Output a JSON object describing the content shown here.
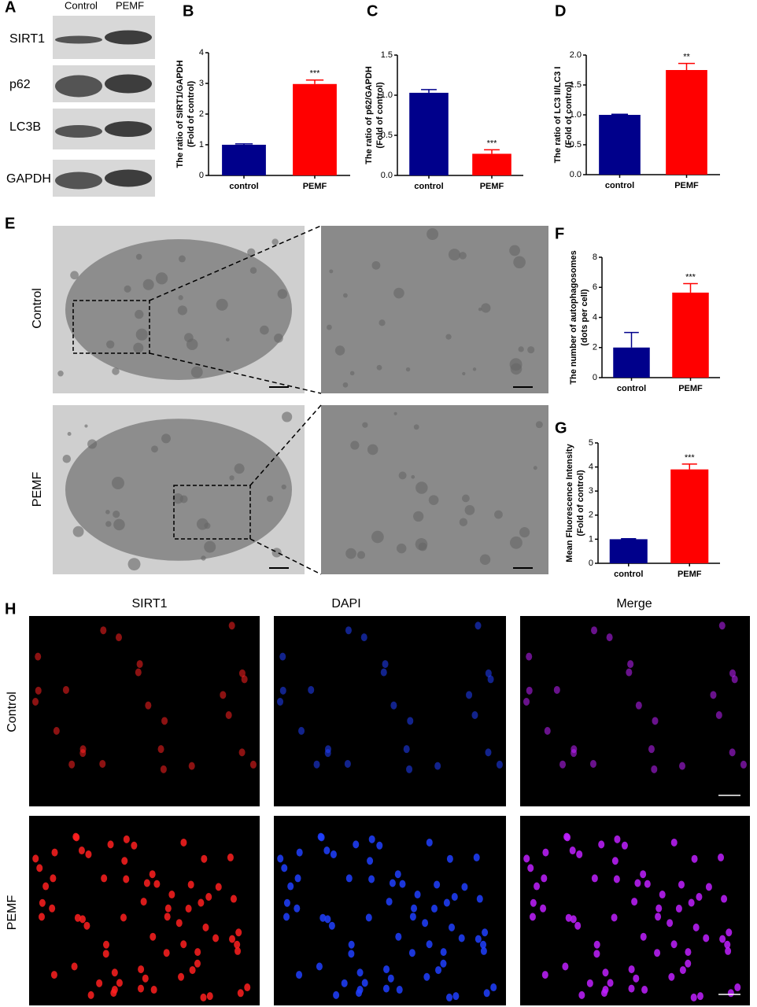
{
  "figure": {
    "panel_letters": {
      "a": "A",
      "e": "E",
      "h": "H"
    },
    "blot": {
      "columns": [
        "Control",
        "PEMF"
      ],
      "rows": [
        "SIRT1",
        "p62",
        "LC3B",
        "GAPDH"
      ]
    },
    "tem": {
      "rows": [
        "Control",
        "PEMF"
      ]
    },
    "fluorescence": {
      "columns": [
        "SIRT1",
        "DAPI",
        "Merge"
      ],
      "rows": [
        "Control",
        "PEMF"
      ]
    }
  },
  "chart_data": [
    {
      "type": "bar",
      "panel": "B",
      "ylabel": [
        "The ratio of SIRT1/GAPDH",
        "(Fold of control)"
      ],
      "categories": [
        "control",
        "PEMF"
      ],
      "values": [
        1.0,
        2.98
      ],
      "errors": [
        0.03,
        0.13
      ],
      "colors": [
        "#00008b",
        "#ff0000"
      ],
      "annotations": [
        {
          "x": "PEMF",
          "text": "***"
        }
      ],
      "ylim": [
        0,
        4
      ],
      "yticks": [
        0,
        1,
        2,
        3,
        4
      ]
    },
    {
      "type": "bar",
      "panel": "C",
      "ylabel": [
        "The ratio of p62/GAPDH",
        "(Fold of control)"
      ],
      "categories": [
        "control",
        "PEMF"
      ],
      "values": [
        1.03,
        0.27
      ],
      "errors": [
        0.04,
        0.05
      ],
      "colors": [
        "#00008b",
        "#ff0000"
      ],
      "annotations": [
        {
          "x": "PEMF",
          "text": "***"
        }
      ],
      "ylim": [
        0,
        1.5
      ],
      "yticks": [
        {
          "value": 0,
          "label": "0.0"
        },
        0.5,
        {
          "value": 1,
          "label": "1.0"
        },
        1.5
      ]
    },
    {
      "type": "bar",
      "panel": "D",
      "ylabel": [
        "The ratio of LC3 II/LC3 I",
        "(Fold of control)"
      ],
      "categories": [
        "control",
        "PEMF"
      ],
      "values": [
        1.0,
        1.75
      ],
      "errors": [
        0.01,
        0.11
      ],
      "colors": [
        "#00008b",
        "#ff0000"
      ],
      "annotations": [
        {
          "x": "PEMF",
          "text": "**"
        }
      ],
      "ylim": [
        0,
        2
      ],
      "yticks": [
        {
          "value": 0,
          "label": "0.0"
        },
        0.5,
        {
          "value": 1,
          "label": "1.0"
        },
        1.5,
        {
          "value": 2,
          "label": "2.0"
        }
      ]
    },
    {
      "type": "bar",
      "panel": "F",
      "ylabel": [
        "The number of autophagosomes",
        "(dots per cell)"
      ],
      "categories": [
        "control",
        "PEMF"
      ],
      "values": [
        2.0,
        5.65
      ],
      "errors": [
        1.0,
        0.6
      ],
      "colors": [
        "#00008b",
        "#ff0000"
      ],
      "annotations": [
        {
          "x": "PEMF",
          "text": "***"
        }
      ],
      "ylim": [
        0,
        8
      ],
      "yticks": [
        0,
        2,
        4,
        6,
        8
      ]
    },
    {
      "type": "bar",
      "panel": "G",
      "ylabel": [
        "Mean Fluorescence Intensity",
        "(Fold of control)"
      ],
      "categories": [
        "control",
        "PEMF"
      ],
      "values": [
        1.0,
        3.9
      ],
      "errors": [
        0.02,
        0.22
      ],
      "colors": [
        "#00008b",
        "#ff0000"
      ],
      "annotations": [
        {
          "x": "PEMF",
          "text": "***"
        }
      ],
      "ylim": [
        0,
        5
      ],
      "yticks": [
        0,
        1,
        2,
        3,
        4,
        5
      ]
    }
  ]
}
